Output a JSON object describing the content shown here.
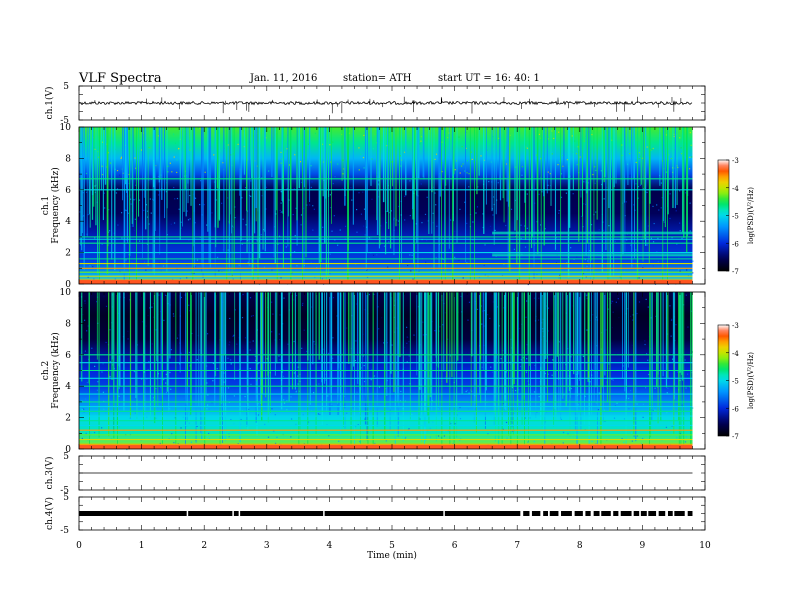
{
  "header": {
    "title": "VLF  Spectra",
    "date": "Jan. 11, 2016",
    "station": "station= ATH",
    "start": "start  UT  =    16: 40: 1"
  },
  "chart_data": [
    {
      "type": "line",
      "ylabel": "ch.1(V)",
      "yticks": [
        "5",
        "-5"
      ],
      "ylim": [
        -5,
        5
      ],
      "signal_level_v": 0.0
    },
    {
      "type": "heatmap",
      "ylabel_channel": "ch.1",
      "ylabel": "Frequency  (kHz)",
      "ylim": [
        0,
        10
      ],
      "yticks": [
        "0",
        "2",
        "4",
        "6",
        "8",
        "10"
      ],
      "colorbar_label": "log(PSD)(V²/Hz)",
      "colorbar_range": [
        -7,
        -3
      ],
      "colorbar_ticks": [
        "-3",
        "-4",
        "-5",
        "-6",
        "-7"
      ],
      "horizontal_lines_khz": [
        0.25,
        0.5,
        0.75,
        1.0,
        1.3,
        1.6,
        2.0,
        2.6,
        2.85,
        3.0,
        6.0,
        6.7
      ],
      "extra_lines_after_min_6.6_khz": [
        3.2,
        3.3,
        1.8,
        1.9
      ]
    },
    {
      "type": "heatmap",
      "ylabel_channel": "ch.2",
      "ylabel": "Frequency  (kHz)",
      "ylim": [
        0,
        10
      ],
      "yticks": [
        "0",
        "2",
        "4",
        "6",
        "8",
        "10"
      ],
      "colorbar_label": "log(PSD)(V²/Hz)",
      "colorbar_range": [
        -7,
        -3
      ],
      "colorbar_ticks": [
        "-3",
        "-4",
        "-5",
        "-6",
        "-7"
      ],
      "horizontal_lines_khz": [
        0.3,
        0.6,
        0.9,
        1.2,
        1.5,
        1.8,
        2.1,
        2.4,
        2.7,
        3.0,
        3.5,
        4.0,
        4.5,
        5.0,
        5.5,
        6.0
      ]
    },
    {
      "type": "line",
      "ylabel": "ch.3(V)",
      "yticks": [
        "5",
        "-5"
      ],
      "ylim": [
        -5,
        5
      ],
      "signal_level_v": 0.0
    },
    {
      "type": "line",
      "ylabel": "ch.4(V)",
      "yticks": [
        "5",
        "-5"
      ],
      "ylim": [
        -5,
        5
      ],
      "signal_level_v": 0.0
    }
  ],
  "xaxis": {
    "label": "Time  (min)",
    "ticks": [
      "0",
      "1",
      "2",
      "3",
      "4",
      "5",
      "6",
      "7",
      "8",
      "9",
      "10"
    ],
    "xlim": [
      0,
      10
    ],
    "data_end_min": 9.8
  },
  "colors": {
    "frame": "#000000",
    "trace": "#000000",
    "background": "#ffffff"
  }
}
